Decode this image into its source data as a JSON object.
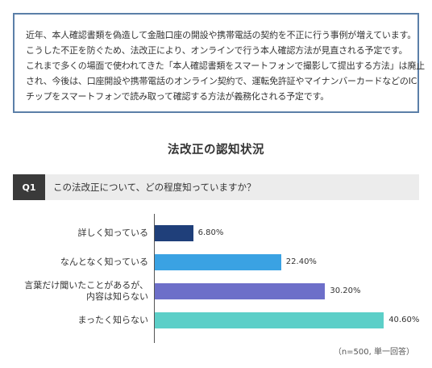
{
  "intro": {
    "lines": [
      "近年、本人確認書類を偽造して金融口座の開設や携帯電話の契約を不正に行う事例が増えています。",
      "こうした不正を防ぐため、法改正により、オンラインで行う本人確認方法が見直される予定です。",
      "これまで多くの場面で使われてきた「本人確認書類をスマートフォンで撮影して提出する方法」は廃止",
      "され、今後は、口座開設や携帯電話のオンライン契約で、運転免許証やマイナンバーカードなどのIC",
      "チップをスマートフォンで読み取って確認する方法が義務化される予定です。"
    ]
  },
  "question": {
    "badge": "Q1",
    "text": "この法改正について、どの程度知っていますか？"
  },
  "note": "（n=500, 単一回答）",
  "colors": {
    "border": "#5b7fa8",
    "bars": [
      "#1f3f7a",
      "#3aa2e3",
      "#6d6fc9",
      "#5ccfc8"
    ]
  },
  "chart_data": {
    "type": "bar",
    "orientation": "horizontal",
    "title": "法改正の認知状況",
    "categories": [
      [
        "詳しく知っている"
      ],
      [
        "なんとなく知っている"
      ],
      [
        "言葉だけ聞いたことがあるが、",
        "内容は知らない"
      ],
      [
        "まったく知らない"
      ]
    ],
    "values": [
      6.8,
      22.4,
      30.2,
      40.6
    ],
    "value_labels": [
      "6.80%",
      "22.40%",
      "30.20%",
      "40.60%"
    ],
    "unit": "%",
    "xlim": [
      0,
      50
    ],
    "grid": false,
    "legend": "none"
  }
}
